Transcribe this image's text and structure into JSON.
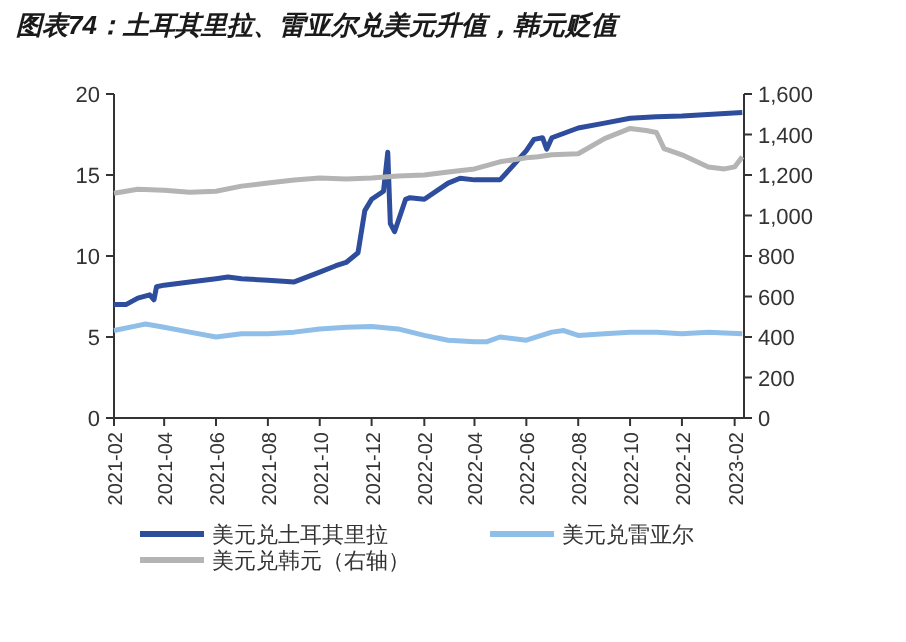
{
  "chart_data": {
    "type": "line",
    "title": "图表74：土耳其里拉、雷亚尔兑美元升值，韩元贬值",
    "legend": "bottom",
    "grid": false,
    "marker": "none",
    "line_style": "solid",
    "xlim": [
      "2021-02-01",
      "2023-02-12"
    ],
    "xticks": [
      "2021-02",
      "2021-04",
      "2021-06",
      "2021-08",
      "2021-10",
      "2021-12",
      "2022-02",
      "2022-04",
      "2022-06",
      "2022-08",
      "2022-10",
      "2022-12",
      "2023-02"
    ],
    "ylim": [
      0,
      20
    ],
    "yticks": [
      0,
      5,
      10,
      15,
      20
    ],
    "y2lim": [
      0,
      1600
    ],
    "y2ticks": [
      0,
      {
        "value": 200,
        "label": "200"
      },
      {
        "value": 400,
        "label": "400"
      },
      {
        "value": 600,
        "label": "600"
      },
      {
        "value": 800,
        "label": "800"
      },
      {
        "value": 1000,
        "label": "1,000"
      },
      {
        "value": 1200,
        "label": "1,200"
      },
      {
        "value": 1400,
        "label": "1,400"
      },
      {
        "value": 1600,
        "label": "1,600"
      }
    ],
    "series": [
      {
        "name": "美元兑土耳其里拉",
        "color": "#2e4d9c",
        "x": [
          "2021-02-01",
          "2021-02-15",
          "2021-03-01",
          "2021-03-15",
          "2021-03-20",
          "2021-03-23",
          "2021-04-01",
          "2021-05-01",
          "2021-06-01",
          "2021-06-15",
          "2021-07-01",
          "2021-08-01",
          "2021-09-01",
          "2021-10-01",
          "2021-10-20",
          "2021-11-01",
          "2021-11-15",
          "2021-11-23",
          "2021-12-01",
          "2021-12-15",
          "2021-12-20",
          "2021-12-23",
          "2021-12-28",
          "2022-01-10",
          "2022-01-15",
          "2022-02-01",
          "2022-03-01",
          "2022-03-15",
          "2022-04-01",
          "2022-05-01",
          "2022-05-15",
          "2022-06-01",
          "2022-06-10",
          "2022-06-20",
          "2022-06-25",
          "2022-07-01",
          "2022-08-01",
          "2022-09-01",
          "2022-10-01",
          "2022-11-01",
          "2022-12-01",
          "2023-02-10"
        ],
        "values": [
          7.0,
          7.0,
          7.4,
          7.6,
          7.3,
          8.1,
          8.2,
          8.4,
          8.6,
          8.7,
          8.6,
          8.5,
          8.4,
          9.0,
          9.4,
          9.6,
          10.2,
          12.8,
          13.5,
          14.0,
          16.4,
          12.0,
          11.5,
          13.5,
          13.6,
          13.5,
          14.5,
          14.8,
          14.7,
          14.7,
          15.5,
          16.5,
          17.2,
          17.3,
          16.6,
          17.3,
          17.9,
          18.2,
          18.5,
          18.6,
          18.65,
          18.85
        ]
      },
      {
        "name": "美元兑雷亚尔",
        "color": "#8fbfe8",
        "x": [
          "2021-02-01",
          "2021-03-01",
          "2021-03-10",
          "2021-04-01",
          "2021-05-01",
          "2021-06-01",
          "2021-07-01",
          "2021-08-01",
          "2021-09-01",
          "2021-10-01",
          "2021-11-01",
          "2021-12-01",
          "2022-01-01",
          "2022-02-01",
          "2022-03-01",
          "2022-04-01",
          "2022-04-15",
          "2022-05-01",
          "2022-06-01",
          "2022-07-01",
          "2022-07-15",
          "2022-08-01",
          "2022-09-01",
          "2022-10-01",
          "2022-11-01",
          "2022-12-01",
          "2023-01-01",
          "2023-02-10"
        ],
        "values": [
          5.4,
          5.7,
          5.8,
          5.6,
          5.3,
          5.0,
          5.2,
          5.2,
          5.3,
          5.5,
          5.6,
          5.65,
          5.5,
          5.1,
          4.8,
          4.7,
          4.7,
          5.0,
          4.8,
          5.3,
          5.4,
          5.1,
          5.2,
          5.3,
          5.3,
          5.2,
          5.3,
          5.2
        ]
      },
      {
        "name": "美元兑韩元（右轴）",
        "color": "#b4b4b4",
        "axis": "y2",
        "x": [
          "2021-02-01",
          "2021-03-01",
          "2021-04-01",
          "2021-05-01",
          "2021-06-01",
          "2021-07-01",
          "2021-08-01",
          "2021-09-01",
          "2021-10-01",
          "2021-11-01",
          "2021-12-01",
          "2022-01-01",
          "2022-02-01",
          "2022-03-01",
          "2022-04-01",
          "2022-05-01",
          "2022-06-01",
          "2022-06-15",
          "2022-07-01",
          "2022-08-01",
          "2022-09-01",
          "2022-10-01",
          "2022-10-20",
          "2022-11-01",
          "2022-11-10",
          "2022-12-01",
          "2023-01-01",
          "2023-01-20",
          "2023-02-01",
          "2023-02-10"
        ],
        "values": [
          1110,
          1130,
          1125,
          1115,
          1120,
          1145,
          1160,
          1175,
          1185,
          1180,
          1185,
          1195,
          1200,
          1215,
          1230,
          1265,
          1285,
          1290,
          1300,
          1305,
          1380,
          1430,
          1420,
          1410,
          1330,
          1300,
          1240,
          1230,
          1240,
          1290
        ]
      }
    ]
  }
}
